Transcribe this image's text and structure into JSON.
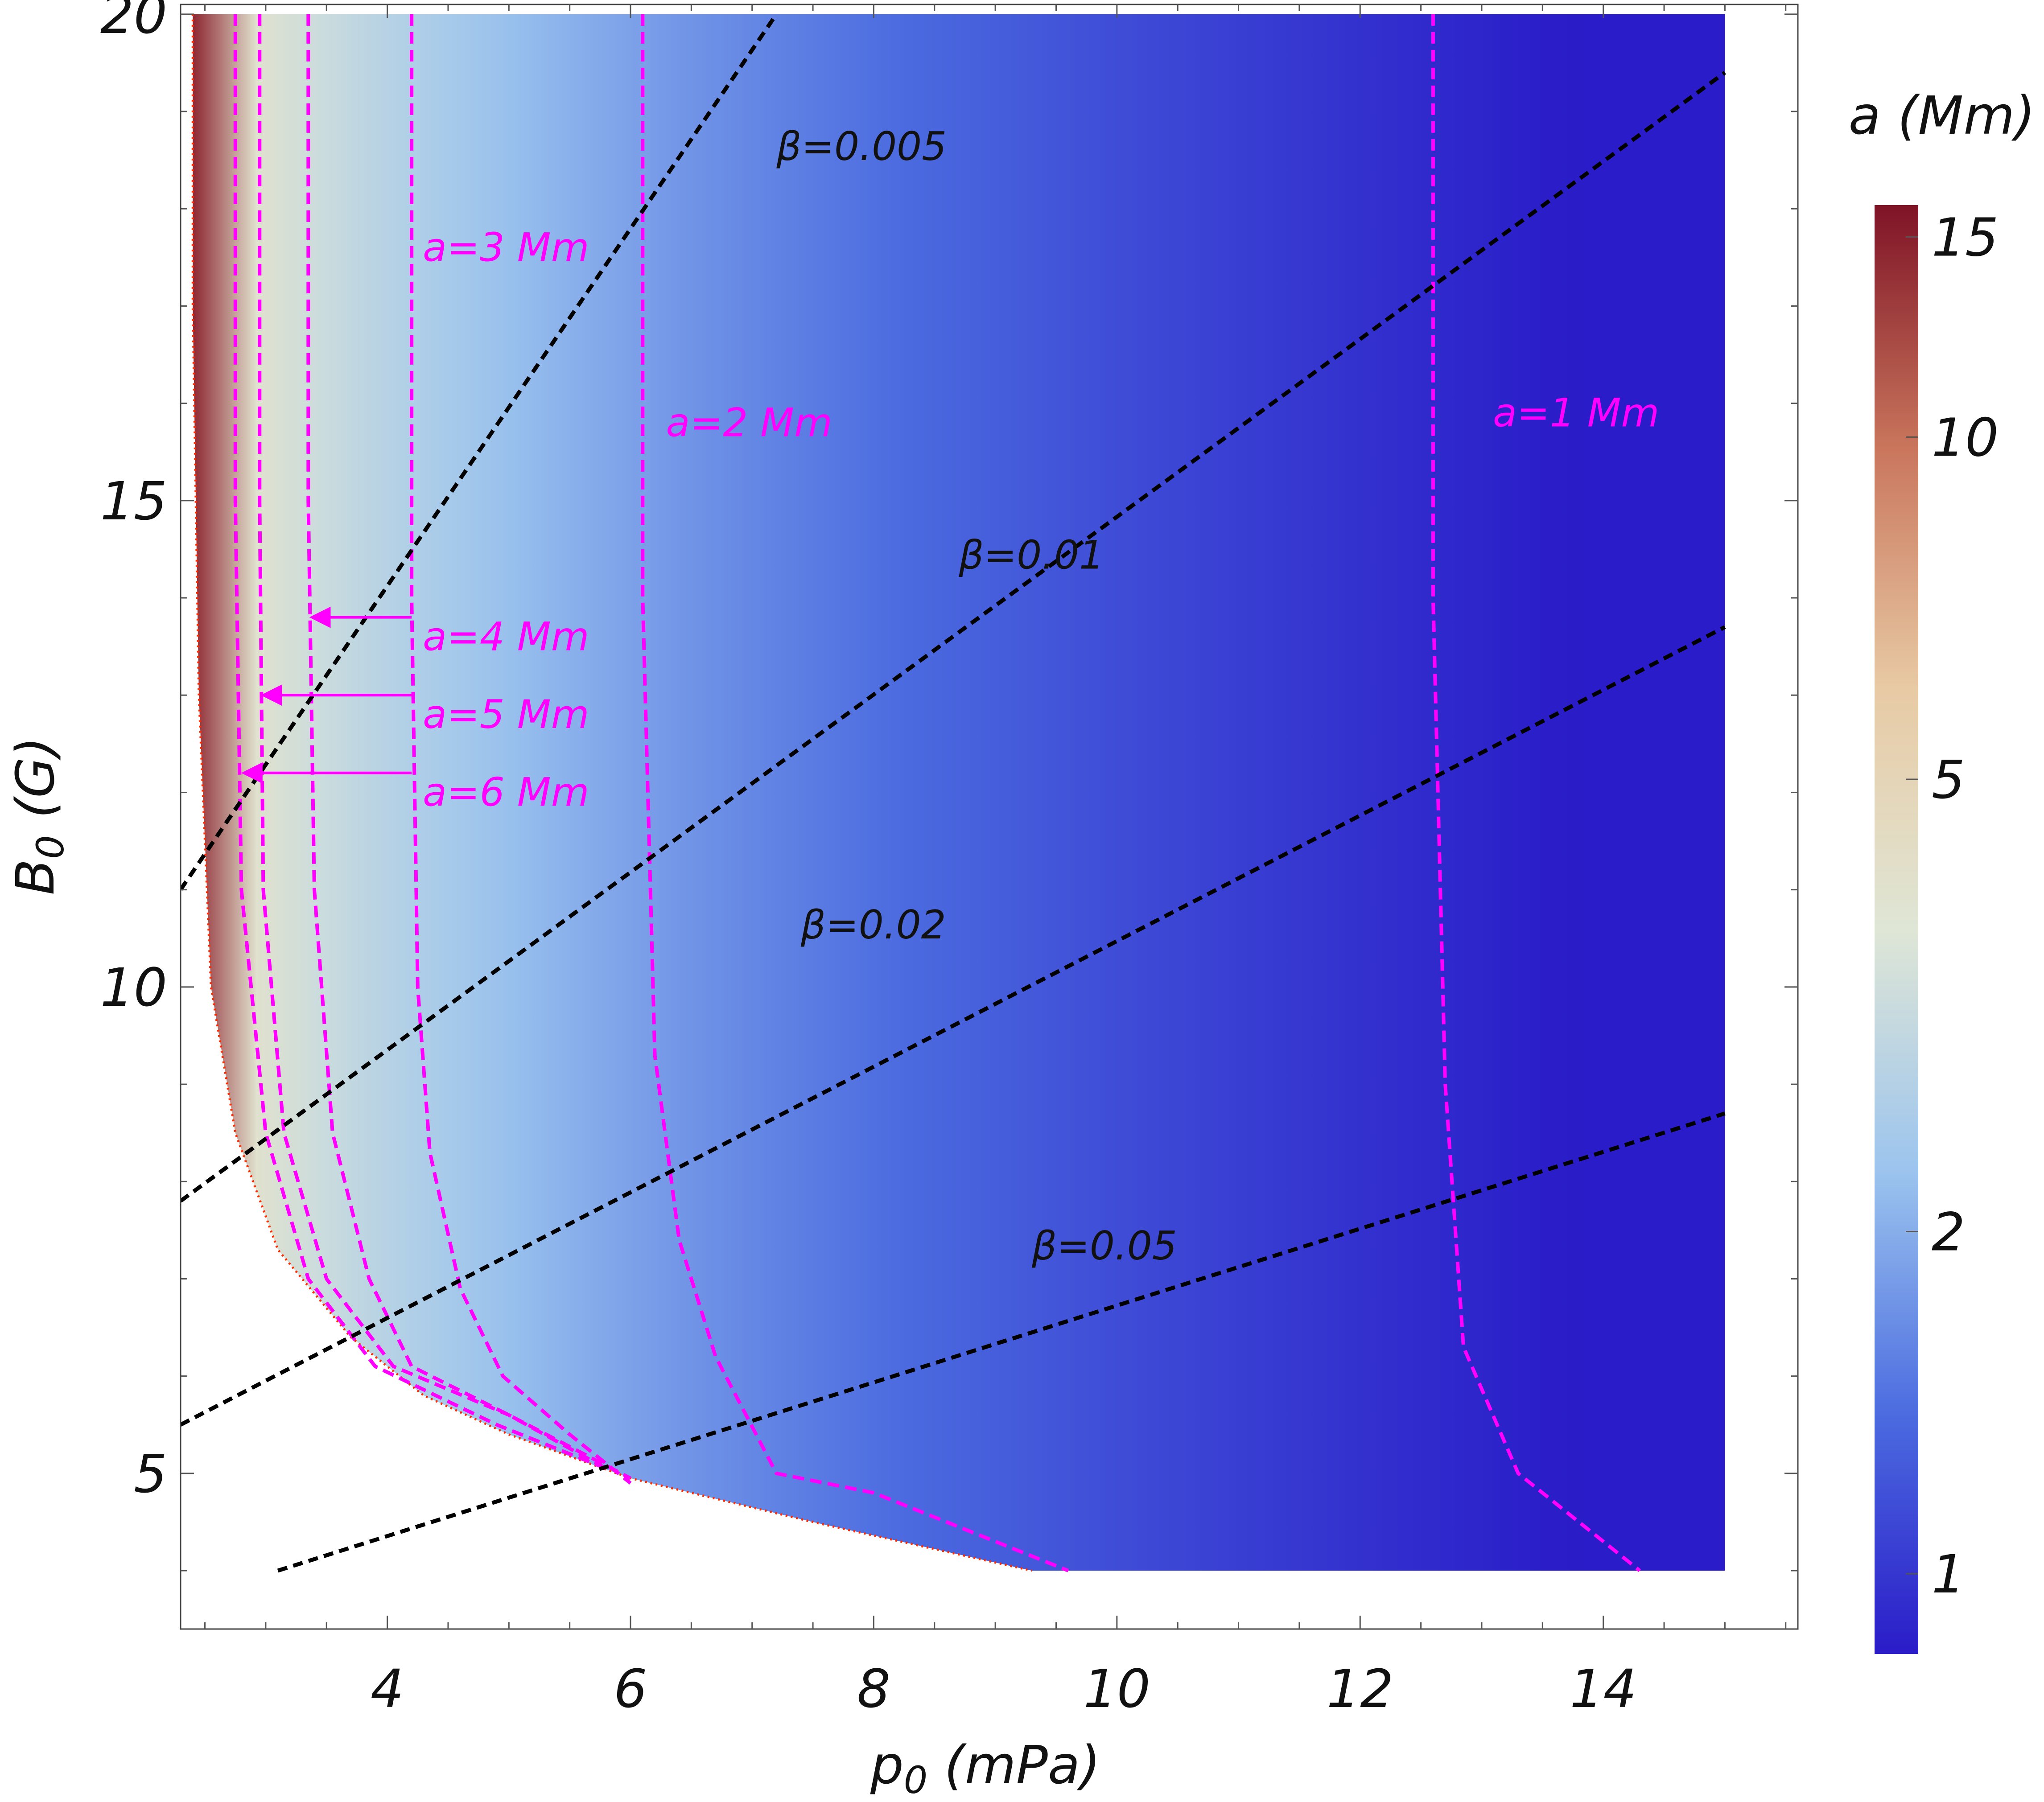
{
  "chart_data": {
    "type": "heatmap",
    "xlabel_base": "p",
    "xlabel_sub": "0",
    "xlabel_unit": " (mPa)",
    "ylabel_base": "B",
    "ylabel_sub": "0",
    "ylabel_unit": " (G)",
    "xlim": [
      2.3,
      15.6
    ],
    "ylim": [
      3.4,
      20.1
    ],
    "x_ticks": [
      {
        "value": 4,
        "label": "4"
      },
      {
        "value": 6,
        "label": "6"
      },
      {
        "value": 8,
        "label": "8"
      },
      {
        "value": 10,
        "label": "10"
      },
      {
        "value": 12,
        "label": "12"
      },
      {
        "value": 14,
        "label": "14"
      }
    ],
    "y_ticks": [
      {
        "value": 5,
        "label": "5"
      },
      {
        "value": 10,
        "label": "10"
      },
      {
        "value": 15,
        "label": "15"
      },
      {
        "value": 20,
        "label": "20"
      }
    ],
    "colorbar": {
      "title": "a (Mm)",
      "scale": "log",
      "range": [
        0.85,
        16
      ],
      "ticks": [
        {
          "value": 1,
          "label": "1"
        },
        {
          "value": 2,
          "label": "2"
        },
        {
          "value": 5,
          "label": "5"
        },
        {
          "value": 10,
          "label": "10"
        },
        {
          "value": 15,
          "label": "15"
        }
      ],
      "colors": [
        "#2a1cc8",
        "#4c6ce0",
        "#9cc4ee",
        "#dfe6d6",
        "#e8caa4",
        "#c9755c",
        "#7e1326"
      ]
    },
    "heat_region": {
      "x_max": 15,
      "y_max": 20,
      "boundary": [
        [
          2.4,
          20
        ],
        [
          2.4,
          17
        ],
        [
          2.45,
          13
        ],
        [
          2.55,
          10
        ],
        [
          2.75,
          8.5
        ],
        [
          3.1,
          7.3
        ],
        [
          3.7,
          6.4
        ],
        [
          4.3,
          5.8
        ],
        [
          5,
          5.4
        ],
        [
          6,
          4.95
        ],
        [
          7.5,
          4.5
        ],
        [
          9.3,
          4
        ]
      ],
      "a_scale": 2.4
    },
    "beta_lines": [
      {
        "label": "β=0.005",
        "points": [
          [
            2.3,
            11
          ],
          [
            7.2,
            20
          ]
        ],
        "label_pos": [
          7.2,
          18.5
        ]
      },
      {
        "label": "β=0.01",
        "points": [
          [
            2.3,
            7.8
          ],
          [
            15,
            19.4
          ]
        ],
        "label_pos": [
          8.7,
          14.3
        ]
      },
      {
        "label": "β=0.02",
        "points": [
          [
            2.3,
            5.5
          ],
          [
            15,
            13.7
          ]
        ],
        "label_pos": [
          7.4,
          10.5
        ]
      },
      {
        "label": "β=0.05",
        "points": [
          [
            3.1,
            4
          ],
          [
            15,
            8.7
          ]
        ],
        "label_pos": [
          9.3,
          7.2
        ]
      }
    ],
    "a_contours": [
      {
        "label": "a=1 Mm",
        "points": [
          [
            12.6,
            20
          ],
          [
            12.6,
            14
          ],
          [
            12.7,
            9
          ],
          [
            12.85,
            6.3
          ],
          [
            13.3,
            5
          ],
          [
            14.3,
            4
          ]
        ],
        "label_pos": [
          13.0,
          15.9
        ]
      },
      {
        "label": "a=2 Mm",
        "points": [
          [
            6.1,
            20
          ],
          [
            6.1,
            14
          ],
          [
            6.2,
            9.3
          ],
          [
            6.4,
            7.4
          ],
          [
            6.7,
            6.2
          ],
          [
            7.2,
            5.0
          ],
          [
            8,
            4.8
          ],
          [
            9.6,
            4
          ]
        ],
        "label_pos": [
          6.2,
          15.8
        ]
      },
      {
        "label": "a=3 Mm",
        "points": [
          [
            4.2,
            20
          ],
          [
            4.2,
            14
          ],
          [
            4.25,
            10
          ],
          [
            4.35,
            8.3
          ],
          [
            4.6,
            6.9
          ],
          [
            4.95,
            6
          ],
          [
            5.5,
            5.4
          ],
          [
            6,
            4.9
          ]
        ],
        "label_pos": [
          4.2,
          17.6
        ]
      },
      {
        "label": "a=4 Mm",
        "points": [
          [
            3.35,
            20
          ],
          [
            3.35,
            15
          ],
          [
            3.4,
            11
          ],
          [
            3.55,
            8.5
          ],
          [
            3.85,
            7
          ],
          [
            4.2,
            6.1
          ],
          [
            5,
            5.6
          ],
          [
            6,
            4.95
          ]
        ],
        "label_pos": [
          4.2,
          13.6
        ],
        "arrow": {
          "from": [
            4.2,
            13.8
          ],
          "to": [
            3.38,
            13.8
          ]
        }
      },
      {
        "label": "a=5 Mm",
        "points": [
          [
            2.95,
            20
          ],
          [
            2.95,
            15
          ],
          [
            2.98,
            11
          ],
          [
            3.15,
            8.5
          ],
          [
            3.5,
            7
          ],
          [
            4.05,
            6.1
          ],
          [
            5,
            5.6
          ],
          [
            5.8,
            5.05
          ]
        ],
        "label_pos": [
          4.2,
          12.8
        ],
        "arrow": {
          "from": [
            4.2,
            13.0
          ],
          "to": [
            2.98,
            13.0
          ]
        }
      },
      {
        "label": "a=6 Mm",
        "points": [
          [
            2.75,
            20
          ],
          [
            2.75,
            15
          ],
          [
            2.8,
            11
          ],
          [
            3.0,
            8.5
          ],
          [
            3.35,
            7
          ],
          [
            3.9,
            6.1
          ],
          [
            4.9,
            5.5
          ],
          [
            5.8,
            5.05
          ]
        ],
        "label_pos": [
          4.2,
          12.0
        ],
        "arrow": {
          "from": [
            4.2,
            12.2
          ],
          "to": [
            2.82,
            12.2
          ]
        }
      }
    ]
  }
}
